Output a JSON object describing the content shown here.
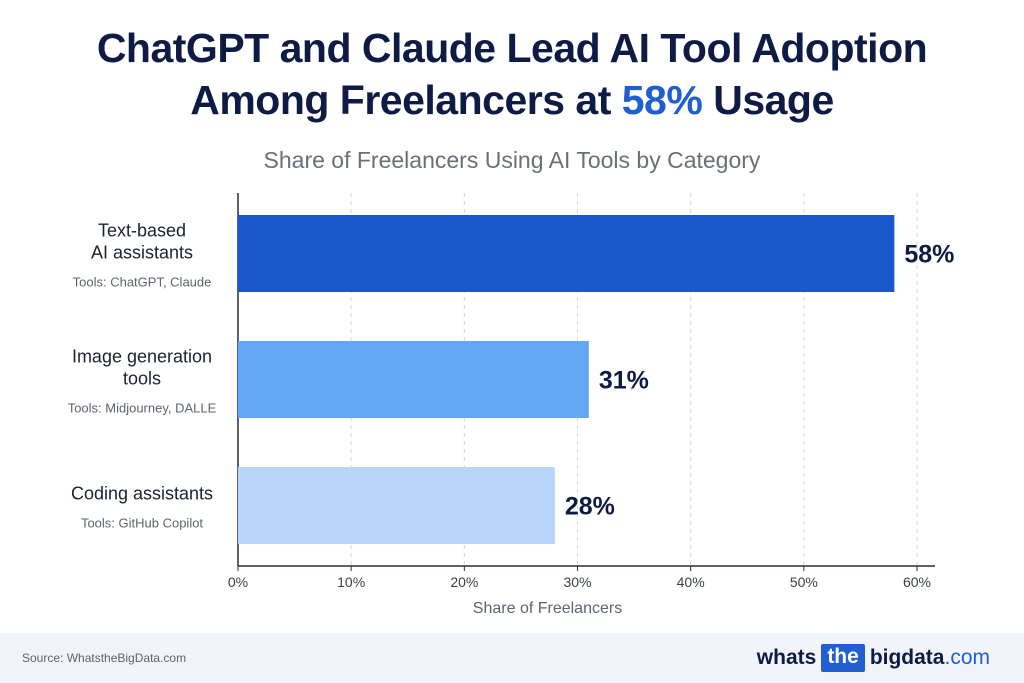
{
  "header": {
    "title_line1": "ChatGPT and Claude Lead AI Tool Adoption",
    "title_line2_pre": "Among Freelancers at ",
    "title_line2_highlight": "58%",
    "title_line2_post": " Usage",
    "subtitle": "Share of Freelancers Using AI Tools by Category"
  },
  "chart_data": {
    "type": "bar",
    "orientation": "horizontal",
    "categories": [
      {
        "label_lines": [
          "Text-based",
          "AI assistants"
        ],
        "tools": "Tools: ChatGPT, Claude"
      },
      {
        "label_lines": [
          "Image generation",
          "tools"
        ],
        "tools": "Tools: Midjourney, DALLE"
      },
      {
        "label_lines": [
          "Coding assistants"
        ],
        "tools": "Tools: GitHub Copilot"
      }
    ],
    "values": [
      58,
      31,
      28
    ],
    "value_labels": [
      "58%",
      "31%",
      "28%"
    ],
    "bar_colors": [
      "#1a56cc",
      "#62a6f5",
      "#b8d6fa"
    ],
    "xlabel": "Share of Freelancers",
    "xlim": [
      0,
      60
    ],
    "xticks": [
      0,
      10,
      20,
      30,
      40,
      50,
      60
    ],
    "xtick_labels": [
      "0%",
      "10%",
      "20%",
      "30%",
      "40%",
      "50%",
      "60%"
    ],
    "grid": "vertical dashed"
  },
  "footer": {
    "source": "Source: WhatstheBigData.com",
    "brand_part1": "whats",
    "brand_part2": "the",
    "brand_part3": "bigdata",
    "brand_part4": ".com"
  },
  "colors": {
    "accent": "#1f5fd1",
    "title": "#0d1b45"
  }
}
